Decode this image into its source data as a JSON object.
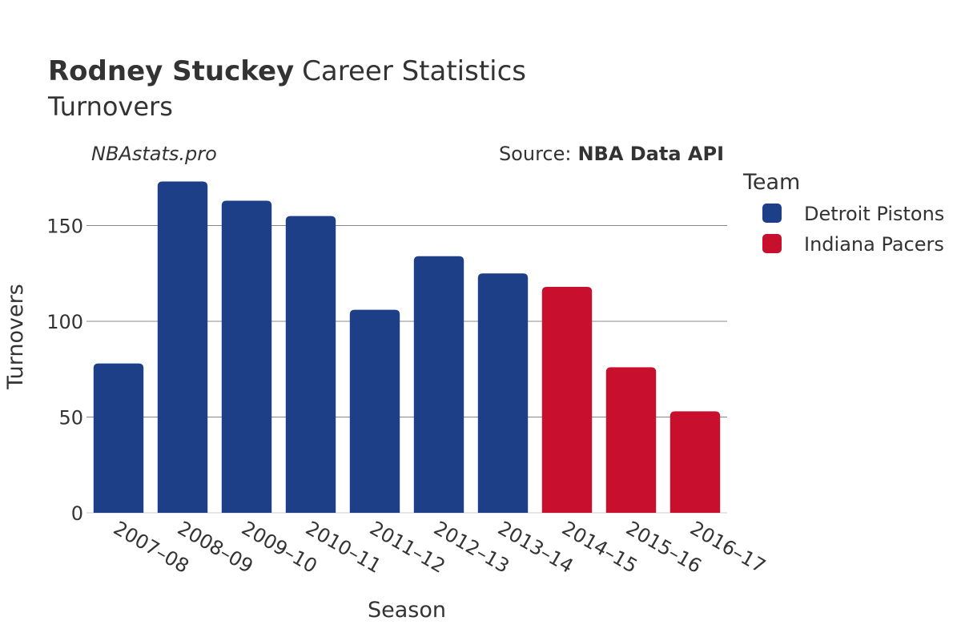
{
  "chart_data": {
    "type": "bar",
    "title_bold": "Rodney Stuckey",
    "title_rest": "Career Statistics",
    "subtitle": "Turnovers",
    "watermark": "NBAstats.pro",
    "source_label": "Source:",
    "source_name": "NBA Data API",
    "xlabel": "Season",
    "ylabel": "Turnovers",
    "ylim": [
      0,
      177
    ],
    "yticks": [
      0,
      50,
      100,
      150
    ],
    "legend_title": "Team",
    "legend_position": "right",
    "grid": true,
    "teams": [
      {
        "name": "Detroit Pistons",
        "color": "#1c3f87"
      },
      {
        "name": "Indiana Pacers",
        "color": "#c8102e"
      }
    ],
    "bars": [
      {
        "season": "2007–08",
        "value": 78,
        "team": 0
      },
      {
        "season": "2008–09",
        "value": 173,
        "team": 0
      },
      {
        "season": "2009–10",
        "value": 163,
        "team": 0
      },
      {
        "season": "2010–11",
        "value": 155,
        "team": 0
      },
      {
        "season": "2011–12",
        "value": 106,
        "team": 0
      },
      {
        "season": "2012–13",
        "value": 134,
        "team": 0
      },
      {
        "season": "2013–14",
        "value": 125,
        "team": 0
      },
      {
        "season": "2014–15",
        "value": 118,
        "team": 1
      },
      {
        "season": "2015–16",
        "value": 76,
        "team": 1
      },
      {
        "season": "2016–17",
        "value": 53,
        "team": 1
      }
    ]
  }
}
